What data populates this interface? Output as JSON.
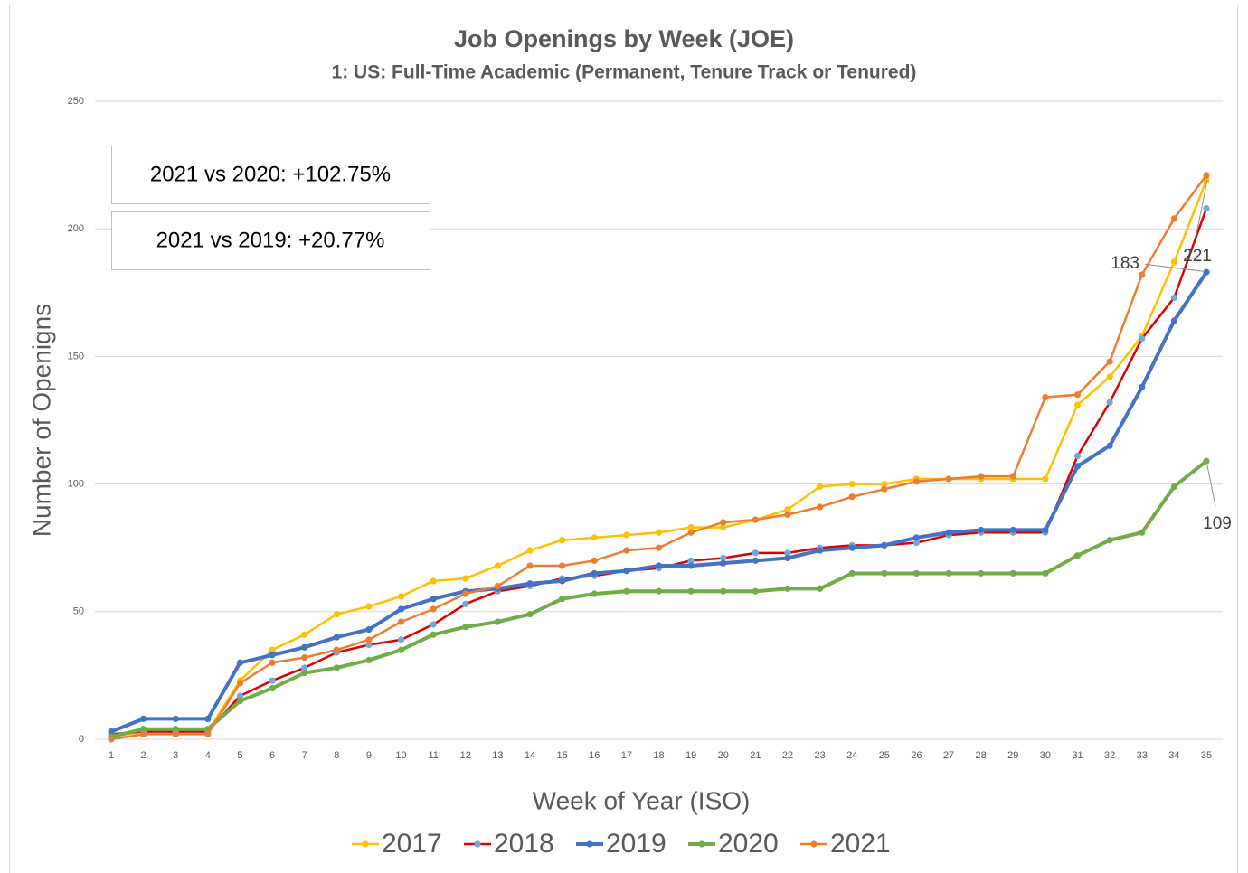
{
  "chart_data": {
    "type": "line",
    "title": "Job Openings by Week (JOE)",
    "subtitle": "1: US: Full-Time Academic (Permanent, Tenure Track or Tenured)",
    "x_label": "Week of Year (ISO)",
    "y_label": "Number of Openigns",
    "annotations": [
      "2021 vs 2020: +102.75%",
      "2021 vs 2019: +20.77%"
    ],
    "categories": [
      1,
      2,
      3,
      4,
      5,
      6,
      7,
      8,
      9,
      10,
      11,
      12,
      13,
      14,
      15,
      16,
      17,
      18,
      19,
      20,
      21,
      22,
      23,
      24,
      25,
      26,
      27,
      28,
      29,
      30,
      31,
      32,
      33,
      34,
      35
    ],
    "ylim": [
      0,
      250
    ],
    "yticks": [
      0,
      50,
      100,
      150,
      200,
      250
    ],
    "grid": true,
    "legend": "bottom",
    "series": [
      {
        "name": "2017",
        "color": "#ffc000",
        "marker_color": "#ffc000",
        "line_width": 2.5,
        "values": [
          1,
          3,
          3,
          3,
          23,
          35,
          41,
          49,
          52,
          56,
          62,
          63,
          68,
          74,
          78,
          79,
          80,
          81,
          83,
          83,
          86,
          90,
          99,
          100,
          100,
          102,
          102,
          102,
          102,
          102,
          131,
          142,
          158,
          187,
          219
        ]
      },
      {
        "name": "2018",
        "color": "#e00000",
        "marker_color": "#6fa8dc",
        "line_width": 2.5,
        "values": [
          2,
          3,
          3,
          3,
          17,
          23,
          28,
          34,
          37,
          39,
          45,
          53,
          58,
          60,
          63,
          64,
          66,
          67,
          70,
          71,
          73,
          73,
          75,
          76,
          76,
          77,
          80,
          81,
          81,
          81,
          111,
          132,
          157,
          173,
          208
        ]
      },
      {
        "name": "2019",
        "color": "#4472c4",
        "marker_color": "#4472c4",
        "line_width": 4,
        "values": [
          3,
          8,
          8,
          8,
          30,
          33,
          36,
          40,
          43,
          51,
          55,
          58,
          59,
          61,
          62,
          65,
          66,
          68,
          68,
          69,
          70,
          71,
          74,
          75,
          76,
          79,
          81,
          82,
          82,
          82,
          107,
          115,
          138,
          164,
          183
        ],
        "value_labels": [
          null,
          null,
          null,
          null,
          null,
          null,
          null,
          null,
          null,
          null,
          null,
          null,
          null,
          null,
          null,
          null,
          null,
          null,
          null,
          null,
          null,
          null,
          null,
          null,
          null,
          null,
          null,
          null,
          null,
          null,
          null,
          null,
          null,
          null,
          "183"
        ]
      },
      {
        "name": "2020",
        "color": "#70ad47",
        "marker_color": "#70ad47",
        "line_width": 4,
        "values": [
          1,
          4,
          4,
          4,
          15,
          20,
          26,
          28,
          31,
          35,
          41,
          44,
          46,
          49,
          55,
          57,
          58,
          58,
          58,
          58,
          58,
          59,
          59,
          65,
          65,
          65,
          65,
          65,
          65,
          65,
          72,
          78,
          81,
          99,
          109
        ],
        "value_labels": [
          null,
          null,
          null,
          null,
          null,
          null,
          null,
          null,
          null,
          null,
          null,
          null,
          null,
          null,
          null,
          null,
          null,
          null,
          null,
          null,
          null,
          null,
          null,
          null,
          null,
          null,
          null,
          null,
          null,
          null,
          null,
          null,
          null,
          null,
          "109"
        ]
      },
      {
        "name": "2021",
        "color": "#ed7d31",
        "marker_color": "#ed7d31",
        "line_width": 2.5,
        "values": [
          0,
          2,
          2,
          2,
          22,
          30,
          32,
          35,
          39,
          46,
          51,
          57,
          60,
          68,
          68,
          70,
          74,
          75,
          81,
          85,
          86,
          88,
          91,
          95,
          98,
          101,
          102,
          103,
          103,
          134,
          135,
          148,
          182,
          204,
          221
        ],
        "value_labels": [
          null,
          null,
          null,
          null,
          null,
          null,
          null,
          null,
          null,
          null,
          null,
          null,
          null,
          null,
          null,
          null,
          null,
          null,
          null,
          null,
          null,
          null,
          null,
          null,
          null,
          null,
          null,
          null,
          null,
          null,
          null,
          null,
          null,
          null,
          "221"
        ]
      }
    ]
  }
}
